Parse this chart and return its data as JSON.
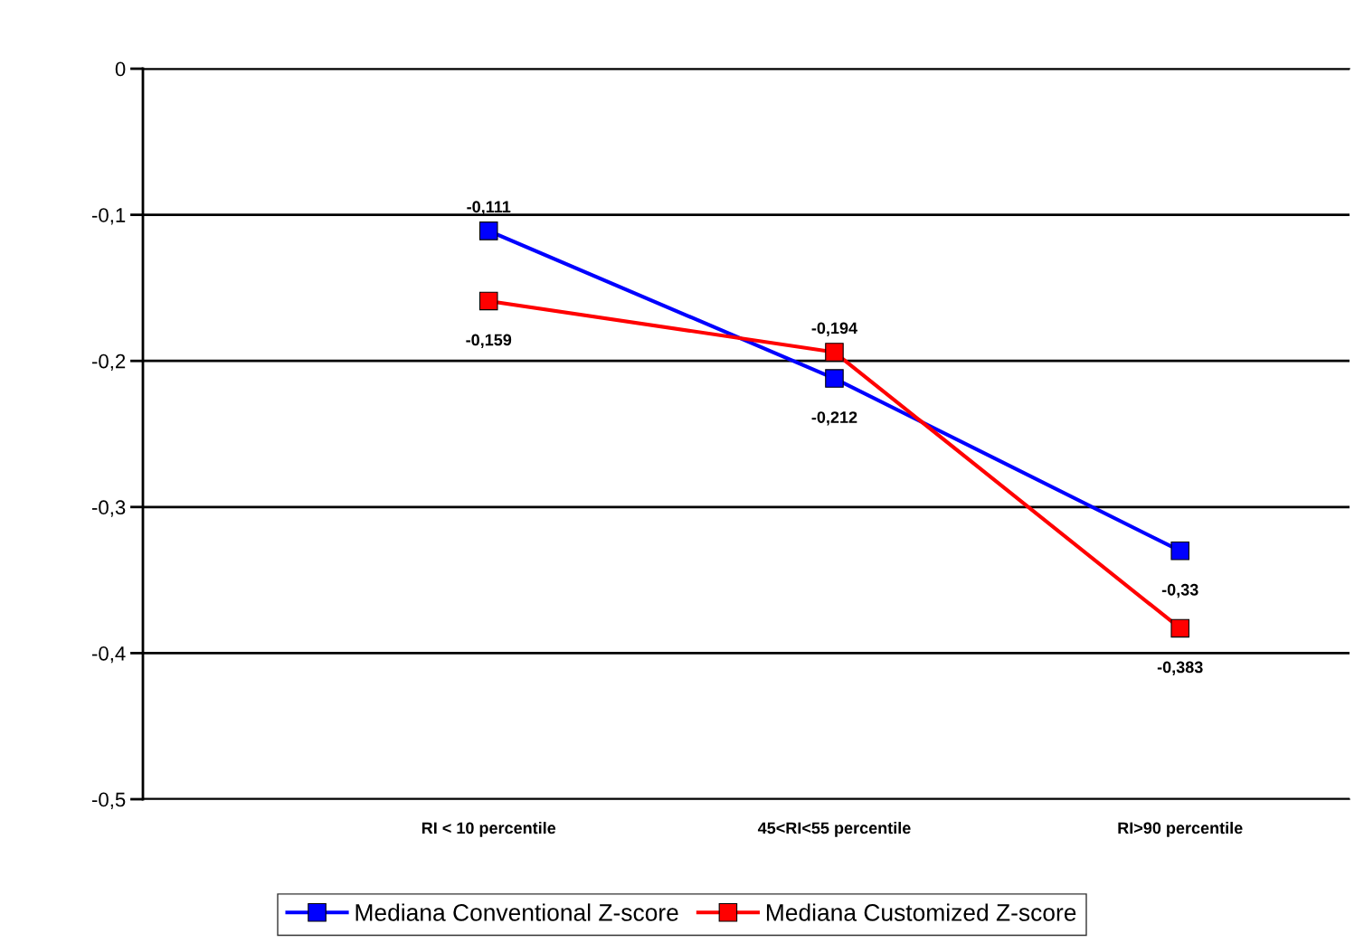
{
  "chart_data": {
    "type": "line",
    "categories": [
      "RI < 10 percentile",
      "45<RI<55 percentile",
      "RI>90 percentile"
    ],
    "series": [
      {
        "name": "Mediana Conventional Z-score",
        "color": "#0000ff",
        "values": [
          -0.111,
          -0.212,
          -0.33
        ],
        "value_labels": [
          "-0,111",
          "-0,212",
          "-0,33"
        ]
      },
      {
        "name": "Mediana Customized Z-score",
        "color": "#ff0000",
        "values": [
          -0.159,
          -0.194,
          -0.383
        ],
        "value_labels": [
          "-0,159",
          "-0,194",
          "-0,383"
        ]
      }
    ],
    "ylim": [
      -0.5,
      0
    ],
    "yticks": [
      {
        "value": 0,
        "label": "0"
      },
      {
        "value": -0.1,
        "label": "-0,1"
      },
      {
        "value": -0.2,
        "label": "-0,2"
      },
      {
        "value": -0.3,
        "label": "-0,3"
      },
      {
        "value": -0.4,
        "label": "-0,4"
      },
      {
        "value": -0.5,
        "label": "-0,5"
      }
    ],
    "grid": "y",
    "legend": "bottom",
    "marker": "square",
    "line_style": "solid"
  }
}
